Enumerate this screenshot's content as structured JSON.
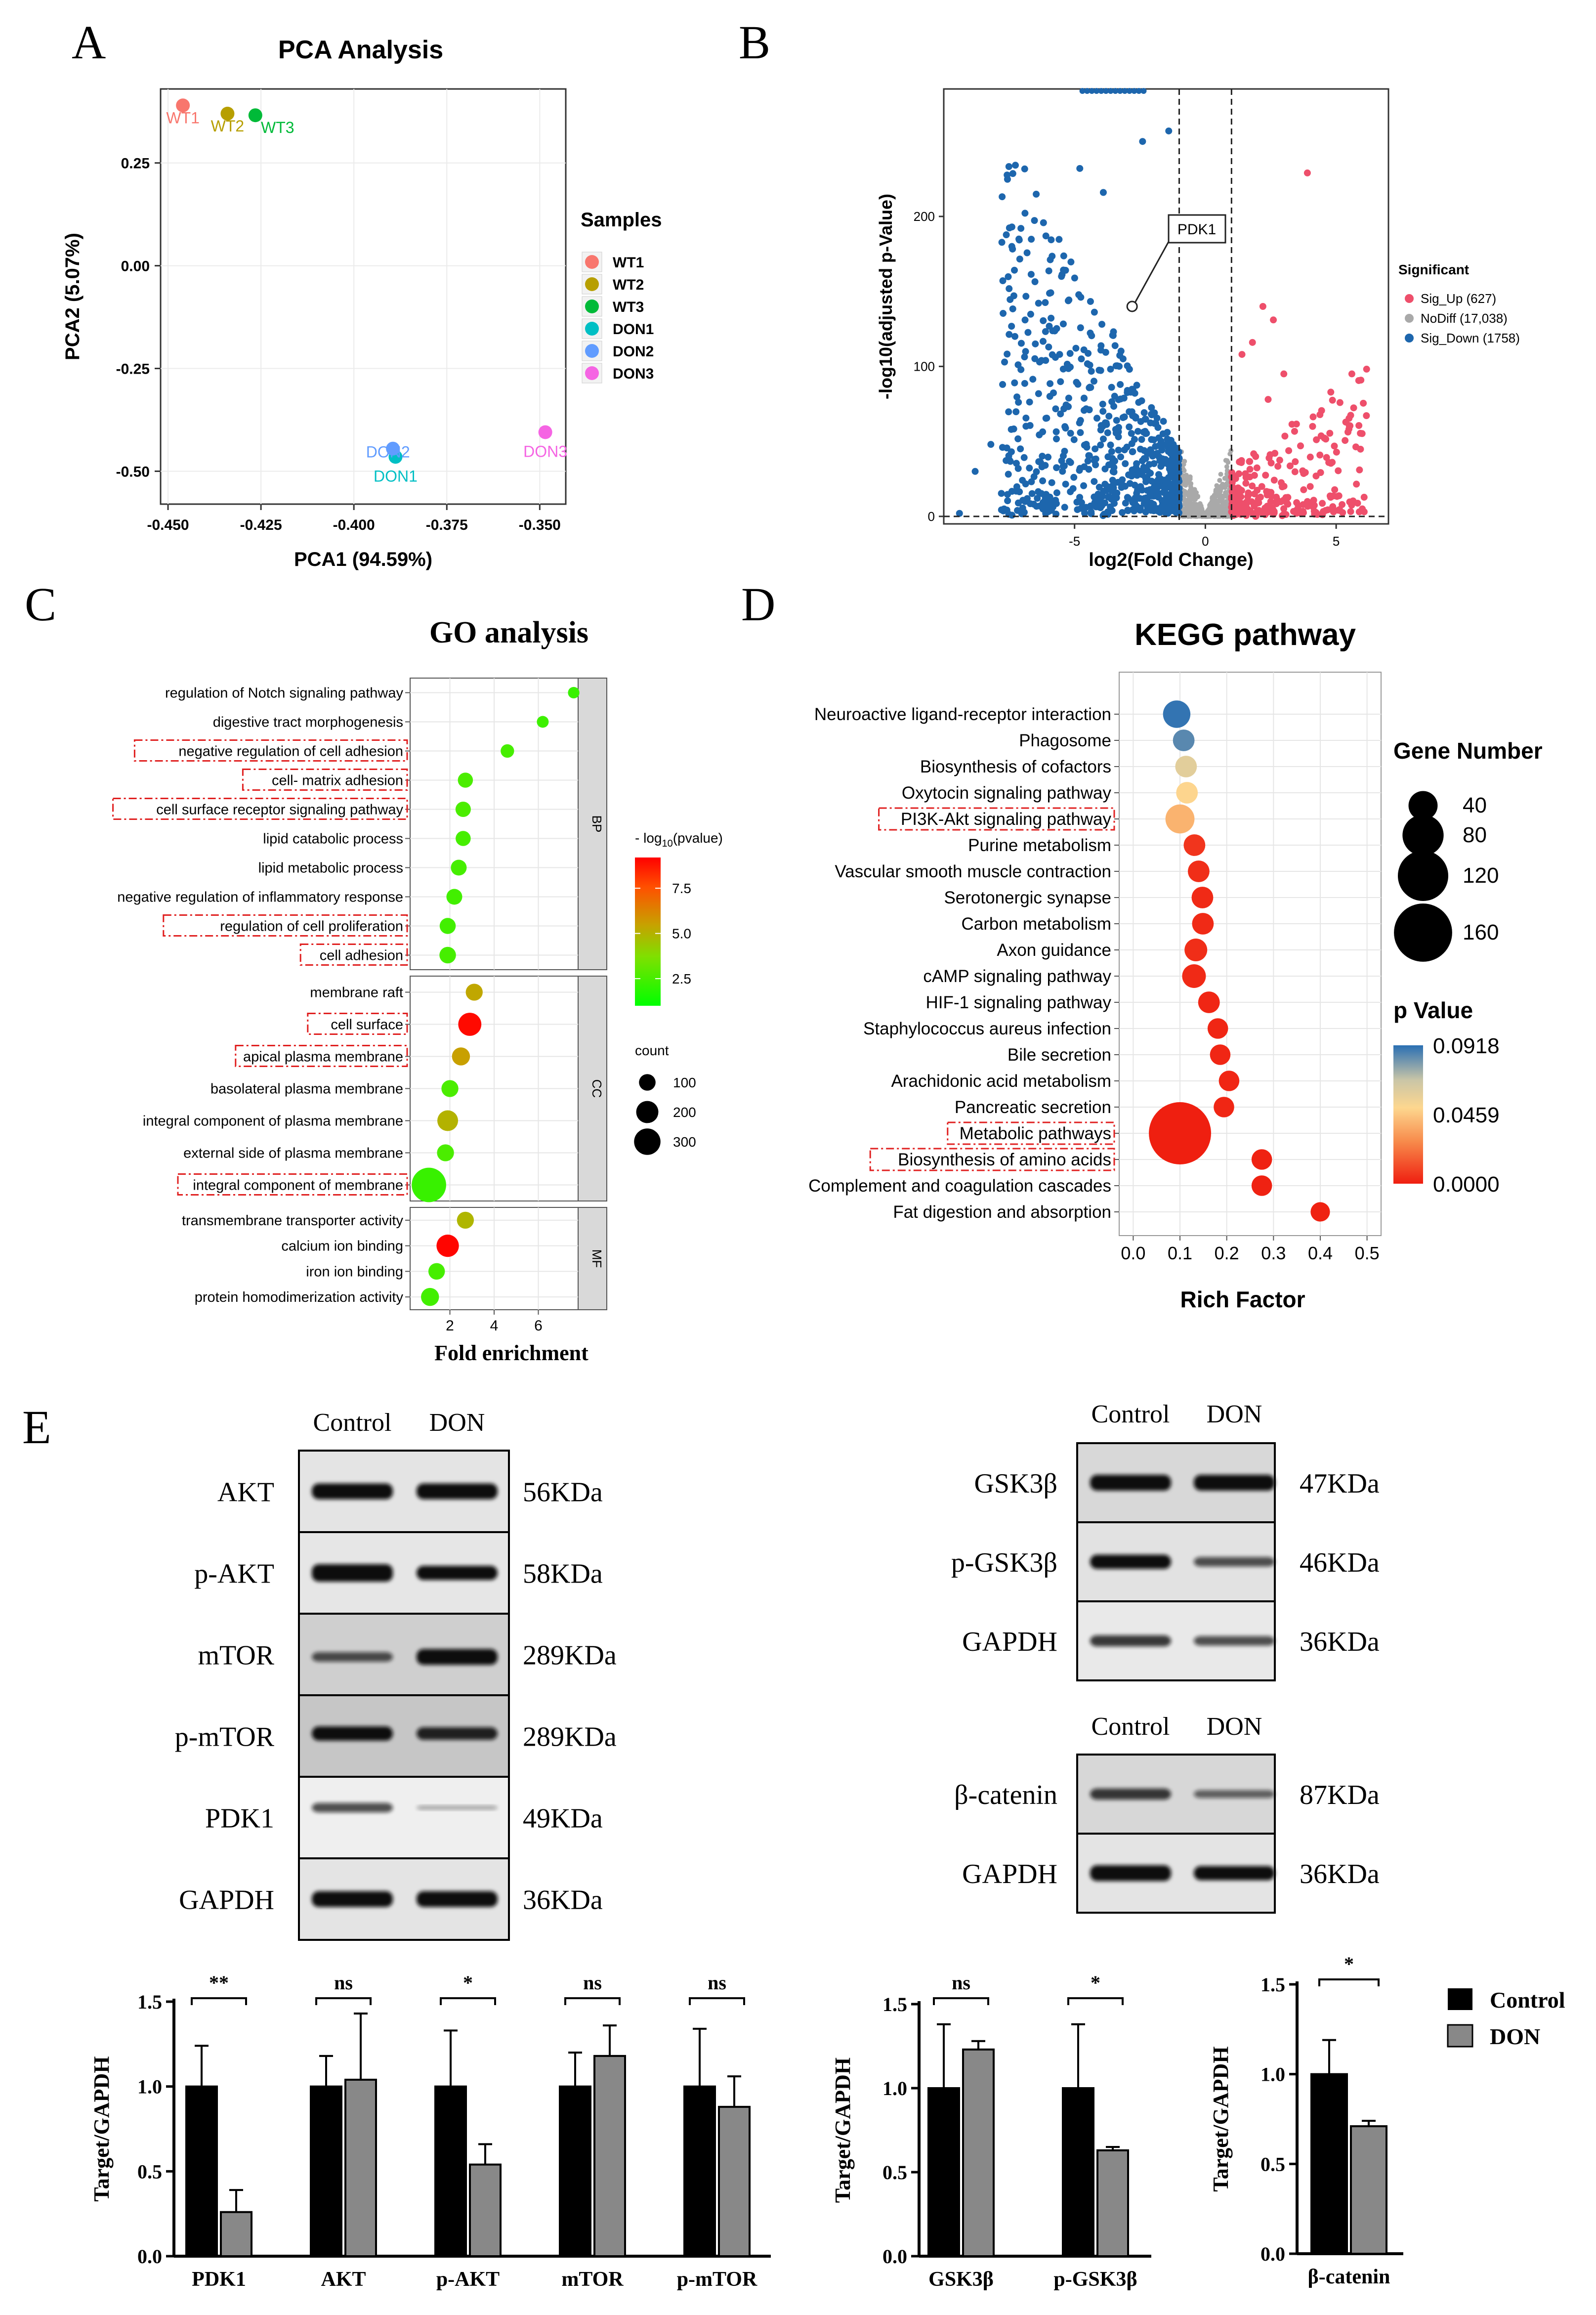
{
  "panels": {
    "A": "A",
    "B": "B",
    "C": "C",
    "D": "D",
    "E": "E"
  },
  "chart_data": [
    {
      "id": "pca",
      "type": "scatter",
      "title": "PCA Analysis",
      "xlabel": "PCA1 (94.59%)",
      "ylabel": "PCA2 (5.07%)",
      "xlim": [
        -0.452,
        -0.343
      ],
      "ylim": [
        -0.58,
        0.43
      ],
      "xticks": [
        -0.45,
        -0.425,
        -0.4,
        -0.375,
        -0.35
      ],
      "xtick_labels": [
        "-0.450",
        "-0.425",
        "-0.400",
        "-0.375",
        "-0.350"
      ],
      "yticks": [
        0.25,
        0,
        -0.25,
        -0.5
      ],
      "ytick_labels": [
        "0.25",
        "0.00",
        "-0.25",
        "-0.50"
      ],
      "legend_title": "Samples",
      "points": [
        {
          "label": "WT1",
          "x": -0.446,
          "y": 0.39,
          "color": "#f8766d"
        },
        {
          "label": "WT2",
          "x": -0.434,
          "y": 0.37,
          "color": "#b79f00"
        },
        {
          "label": "WT3",
          "x": -0.4265,
          "y": 0.366,
          "color": "#00ba38"
        },
        {
          "label": "DON1",
          "x": -0.3888,
          "y": -0.465,
          "color": "#00bfc4"
        },
        {
          "label": "DON2",
          "x": -0.3895,
          "y": -0.445,
          "color": "#619cff"
        },
        {
          "label": "DON3",
          "x": -0.3485,
          "y": -0.405,
          "color": "#f564e3"
        }
      ]
    },
    {
      "id": "volcano",
      "type": "scatter",
      "xlabel": "log2(Fold Change)",
      "ylabel": "-log10(adjusted p-Value)",
      "xlim": [
        -10,
        7
      ],
      "ylim": [
        -5,
        285
      ],
      "xticks": [
        -5,
        0,
        5
      ],
      "xtick_labels": [
        "-5",
        "0",
        "5"
      ],
      "yticks": [
        0,
        100,
        200
      ],
      "ytick_labels": [
        "0",
        "100",
        "200"
      ],
      "thresholds": {
        "fc": 1,
        "y": 0
      },
      "annotation": "PDK1",
      "annotation_point": {
        "x": -2.8,
        "y": 140
      },
      "legend_title": "Significant",
      "series": [
        {
          "name": "Sig_Up (627)",
          "count": 627,
          "color": "#ee4f6b"
        },
        {
          "name": "NoDiff (17,038)",
          "count": 17038,
          "color": "#a9a9a9"
        },
        {
          "name": "Sig_Down (1758)",
          "count": 1758,
          "color": "#1d66ad"
        }
      ]
    },
    {
      "id": "go",
      "type": "scatter",
      "title": "GO analysis",
      "xlabel": "Fold enrichment",
      "xlim": [
        0.2,
        7.8
      ],
      "xticks": [
        2,
        4,
        6
      ],
      "xtick_labels": [
        "2",
        "4",
        "6"
      ],
      "color_title_pre": "- log",
      "color_title_sub": "10",
      "color_title_post": "(pvalue)",
      "color_range": [
        1,
        9.2
      ],
      "color_ticks": [
        7.5,
        5,
        2.5
      ],
      "color_tick_labels": [
        "7.5",
        "5.0",
        "2.5"
      ],
      "size_title": "count",
      "size_ticks": [
        100,
        200,
        300
      ],
      "size_tick_labels": [
        "100",
        "200",
        "300"
      ],
      "groups": [
        {
          "name": "BP",
          "terms": [
            {
              "term": "regulation of Notch signaling pathway",
              "fe": 7.6,
              "p": 2.2,
              "count": 20,
              "boxed": false
            },
            {
              "term": "digestive tract morphogenesis",
              "fe": 6.2,
              "p": 2.3,
              "count": 22,
              "boxed": false
            },
            {
              "term": "negative regulation of cell adhesion",
              "fe": 4.6,
              "p": 2.5,
              "count": 32,
              "boxed": true
            },
            {
              "term": "cell- matrix adhesion",
              "fe": 2.7,
              "p": 2.6,
              "count": 44,
              "boxed": true
            },
            {
              "term": "cell surface receptor signaling pathway",
              "fe": 2.6,
              "p": 2.6,
              "count": 46,
              "boxed": true
            },
            {
              "term": "lipid catabolic process",
              "fe": 2.6,
              "p": 2.5,
              "count": 44,
              "boxed": false
            },
            {
              "term": "lipid metabolic process",
              "fe": 2.4,
              "p": 2.5,
              "count": 50,
              "boxed": false
            },
            {
              "term": "negative regulation of inflammatory response",
              "fe": 2.2,
              "p": 2.4,
              "count": 50,
              "boxed": false
            },
            {
              "term": "regulation of cell proliferation",
              "fe": 1.9,
              "p": 2.4,
              "count": 52,
              "boxed": true
            },
            {
              "term": "cell adhesion",
              "fe": 1.9,
              "p": 2.5,
              "count": 56,
              "boxed": true
            }
          ]
        },
        {
          "name": "CC",
          "terms": [
            {
              "term": "membrane raft",
              "fe": 3.1,
              "p": 5.3,
              "count": 60,
              "boxed": false
            },
            {
              "term": "cell surface",
              "fe": 2.9,
              "p": 9.0,
              "count": 130,
              "boxed": true
            },
            {
              "term": "apical plasma membrane",
              "fe": 2.5,
              "p": 5.5,
              "count": 70,
              "boxed": true
            },
            {
              "term": "basolateral plasma membrane",
              "fe": 2.0,
              "p": 2.6,
              "count": 60,
              "boxed": false
            },
            {
              "term": "integral component of plasma membrane",
              "fe": 1.9,
              "p": 5.0,
              "count": 100,
              "boxed": false
            },
            {
              "term": "external side of plasma membrane",
              "fe": 1.8,
              "p": 2.6,
              "count": 60,
              "boxed": false
            },
            {
              "term": "integral component of membrane",
              "fe": 1.05,
              "p": 2.2,
              "count": 330,
              "boxed": true
            }
          ]
        },
        {
          "name": "MF",
          "terms": [
            {
              "term": "transmembrane transporter activity",
              "fe": 2.7,
              "p": 4.9,
              "count": 60,
              "boxed": false
            },
            {
              "term": "calcium ion binding",
              "fe": 1.9,
              "p": 9.1,
              "count": 120,
              "boxed": false
            },
            {
              "term": "iron ion binding",
              "fe": 1.4,
              "p": 2.5,
              "count": 56,
              "boxed": false
            },
            {
              "term": "protein homodimerization activity",
              "fe": 1.1,
              "p": 2.4,
              "count": 70,
              "boxed": false
            }
          ]
        }
      ]
    },
    {
      "id": "kegg",
      "type": "scatter",
      "title": "KEGG pathway",
      "xlabel": "Rich Factor",
      "xlim": [
        -0.03,
        0.53
      ],
      "xticks": [
        0,
        0.1,
        0.2,
        0.3,
        0.4,
        0.5
      ],
      "xtick_labels": [
        "0.0",
        "0.1",
        "0.2",
        "0.3",
        "0.4",
        "0.5"
      ],
      "size_title": "Gene Number",
      "size_ticks": [
        40,
        80,
        120,
        160
      ],
      "size_tick_labels": [
        "40",
        "80",
        "120",
        "160"
      ],
      "color_title": "p Value",
      "color_range": [
        0,
        0.0918
      ],
      "color_ticks": [
        0.0918,
        0.0459,
        0
      ],
      "color_tick_labels": [
        "0.0918",
        "0.0459",
        "0.0000"
      ],
      "terms": [
        {
          "term": "Neuroactive ligand-receptor interaction",
          "rf": 0.093,
          "p": 0.0905,
          "genes": 32,
          "boxed": false
        },
        {
          "term": "Phagosome",
          "rf": 0.108,
          "p": 0.085,
          "genes": 20,
          "boxed": false
        },
        {
          "term": "Biosynthesis of cofactors",
          "rf": 0.113,
          "p": 0.06,
          "genes": 20,
          "boxed": false
        },
        {
          "term": "Oxytocin signaling pathway",
          "rf": 0.115,
          "p": 0.05,
          "genes": 20,
          "boxed": false
        },
        {
          "term": "PI3K-Akt signaling pathway",
          "rf": 0.1,
          "p": 0.04,
          "genes": 36,
          "boxed": true
        },
        {
          "term": "Purine metabolism",
          "rf": 0.131,
          "p": 0.006,
          "genes": 20,
          "boxed": false
        },
        {
          "term": "Vascular smooth muscle contraction",
          "rf": 0.14,
          "p": 0.004,
          "genes": 20,
          "boxed": false
        },
        {
          "term": "Serotonergic synapse",
          "rf": 0.148,
          "p": 0.003,
          "genes": 20,
          "boxed": false
        },
        {
          "term": "Carbon metabolism",
          "rf": 0.149,
          "p": 0.003,
          "genes": 20,
          "boxed": false
        },
        {
          "term": "Axon guidance",
          "rf": 0.134,
          "p": 0.004,
          "genes": 22,
          "boxed": false
        },
        {
          "term": "cAMP signaling pathway",
          "rf": 0.13,
          "p": 0.003,
          "genes": 24,
          "boxed": false
        },
        {
          "term": "HIF-1 signaling pathway",
          "rf": 0.162,
          "p": 0.002,
          "genes": 20,
          "boxed": false
        },
        {
          "term": "Staphylococcus aureus infection",
          "rf": 0.181,
          "p": 0.002,
          "genes": 18,
          "boxed": false
        },
        {
          "term": "Bile secretion",
          "rf": 0.186,
          "p": 0.002,
          "genes": 18,
          "boxed": false
        },
        {
          "term": "Arachidonic acid metabolism",
          "rf": 0.205,
          "p": 0.002,
          "genes": 18,
          "boxed": false
        },
        {
          "term": "Pancreatic secretion",
          "rf": 0.194,
          "p": 0.002,
          "genes": 18,
          "boxed": false
        },
        {
          "term": "Metabolic pathways",
          "rf": 0.1,
          "p": 0.0002,
          "genes": 165,
          "boxed": true
        },
        {
          "term": "Biosynthesis of amino acids",
          "rf": 0.275,
          "p": 0.001,
          "genes": 18,
          "boxed": true
        },
        {
          "term": "Complement and coagulation cascades",
          "rf": 0.275,
          "p": 0.001,
          "genes": 18,
          "boxed": false
        },
        {
          "term": "Fat digestion and absorption",
          "rf": 0.4,
          "p": 0.001,
          "genes": 16,
          "boxed": false
        }
      ]
    },
    {
      "id": "bars1",
      "type": "bar",
      "ylabel": "Target/GAPDH",
      "ylim": [
        0,
        1.5
      ],
      "yticks": [
        0,
        0.5,
        1,
        1.5
      ],
      "ytick_labels": [
        "0.0",
        "0.5",
        "1.0",
        "1.5"
      ],
      "categories": [
        "PDK1",
        "AKT",
        "p-AKT",
        "mTOR",
        "p-mTOR"
      ],
      "series": [
        {
          "name": "Control",
          "color": "#000000",
          "values": [
            1.0,
            1.0,
            1.0,
            1.0,
            1.0
          ],
          "errors": [
            0.24,
            0.18,
            0.33,
            0.2,
            0.34
          ]
        },
        {
          "name": "DON",
          "color": "#888888",
          "values": [
            0.26,
            1.04,
            0.54,
            1.18,
            0.88
          ],
          "errors": [
            0.13,
            0.39,
            0.12,
            0.18,
            0.18
          ]
        }
      ],
      "significance": [
        "**",
        "ns",
        "*",
        "ns",
        "ns"
      ]
    },
    {
      "id": "bars2",
      "type": "bar",
      "ylabel": "Target/GAPDH",
      "ylim": [
        0,
        1.5
      ],
      "yticks": [
        0,
        0.5,
        1,
        1.5
      ],
      "ytick_labels": [
        "0.0",
        "0.5",
        "1.0",
        "1.5"
      ],
      "categories": [
        "GSK3β",
        "p-GSK3β"
      ],
      "series": [
        {
          "name": "Control",
          "color": "#000000",
          "values": [
            1.0,
            1.0
          ],
          "errors": [
            0.38,
            0.38
          ]
        },
        {
          "name": "DON",
          "color": "#888888",
          "values": [
            1.23,
            0.63
          ],
          "errors": [
            0.05,
            0.02
          ]
        }
      ],
      "significance": [
        "ns",
        "*"
      ]
    },
    {
      "id": "bars3",
      "type": "bar",
      "ylabel": "Target/GAPDH",
      "ylim": [
        0,
        1.5
      ],
      "yticks": [
        0,
        0.5,
        1,
        1.5
      ],
      "ytick_labels": [
        "0.0",
        "0.5",
        "1.0",
        "1.5"
      ],
      "categories": [
        "β-catenin"
      ],
      "series": [
        {
          "name": "Control",
          "color": "#000000",
          "values": [
            1.0
          ],
          "errors": [
            0.19
          ]
        },
        {
          "name": "DON",
          "color": "#888888",
          "values": [
            0.71
          ],
          "errors": [
            0.03
          ]
        }
      ],
      "significance": [
        "*"
      ]
    }
  ],
  "legend_bars": {
    "control": "Control",
    "don": "DON"
  },
  "blots": {
    "left": {
      "headers": [
        "Control",
        "DON"
      ],
      "rows": [
        {
          "label": "AKT",
          "kda": "56KDa"
        },
        {
          "label": "p-AKT",
          "kda": "58KDa"
        },
        {
          "label": "mTOR",
          "kda": "289KDa"
        },
        {
          "label": "p-mTOR",
          "kda": "289KDa"
        },
        {
          "label": "PDK1",
          "kda": "49KDa"
        },
        {
          "label": "GAPDH",
          "kda": "36KDa"
        }
      ]
    },
    "right_top": {
      "headers": [
        "Control",
        "DON"
      ],
      "rows": [
        {
          "label": "GSK3β",
          "kda": "47KDa"
        },
        {
          "label": "p-GSK3β",
          "kda": "46KDa"
        },
        {
          "label": "GAPDH",
          "kda": "36KDa"
        }
      ]
    },
    "right_bottom": {
      "headers": [
        "Control",
        "DON"
      ],
      "rows": [
        {
          "label": "β-catenin",
          "kda": "87KDa"
        },
        {
          "label": "GAPDH",
          "kda": "36KDa"
        }
      ]
    }
  }
}
